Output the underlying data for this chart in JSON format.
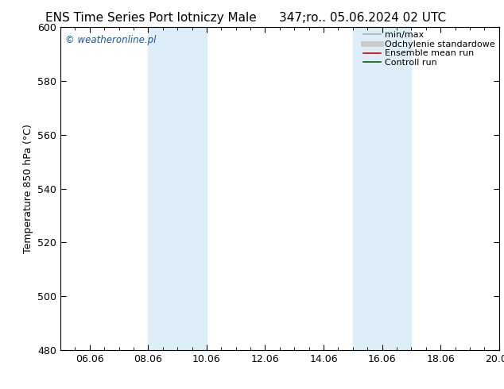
{
  "title_left": "ENS Time Series Port lotniczy Male",
  "title_right": "347;ro.. 05.06.2024 02 UTC",
  "ylabel": "Temperature 850 hPa (°C)",
  "ylim": [
    480,
    600
  ],
  "yticks": [
    480,
    500,
    520,
    540,
    560,
    580,
    600
  ],
  "xlim": [
    0,
    15
  ],
  "x_labels": [
    "06.06",
    "08.06",
    "10.06",
    "12.06",
    "14.06",
    "16.06",
    "18.06",
    "20.06"
  ],
  "x_tick_positions": [
    1,
    3,
    5,
    7,
    9,
    11,
    13,
    15
  ],
  "shade_regions": [
    {
      "x_start": 3.0,
      "x_end": 5.0,
      "color": "#ddeef8"
    },
    {
      "x_start": 10.0,
      "x_end": 12.0,
      "color": "#ddeef8"
    }
  ],
  "watermark": "© weatheronline.pl",
  "watermark_color": "#1155aa",
  "legend_items": [
    {
      "label": "min/max",
      "color": "#bbbbbb",
      "lw": 1.5,
      "style": "solid"
    },
    {
      "label": "Odchylenie standardowe",
      "color": "#cccccc",
      "lw": 5,
      "style": "solid"
    },
    {
      "label": "Ensemble mean run",
      "color": "#cc0000",
      "lw": 1.2,
      "style": "solid"
    },
    {
      "label": "Controll run",
      "color": "#006600",
      "lw": 1.2,
      "style": "solid"
    }
  ],
  "background_color": "#ffffff",
  "plot_bg_color": "#ffffff",
  "title_fontsize": 11,
  "tick_fontsize": 9,
  "ylabel_fontsize": 9,
  "legend_fontsize": 8
}
